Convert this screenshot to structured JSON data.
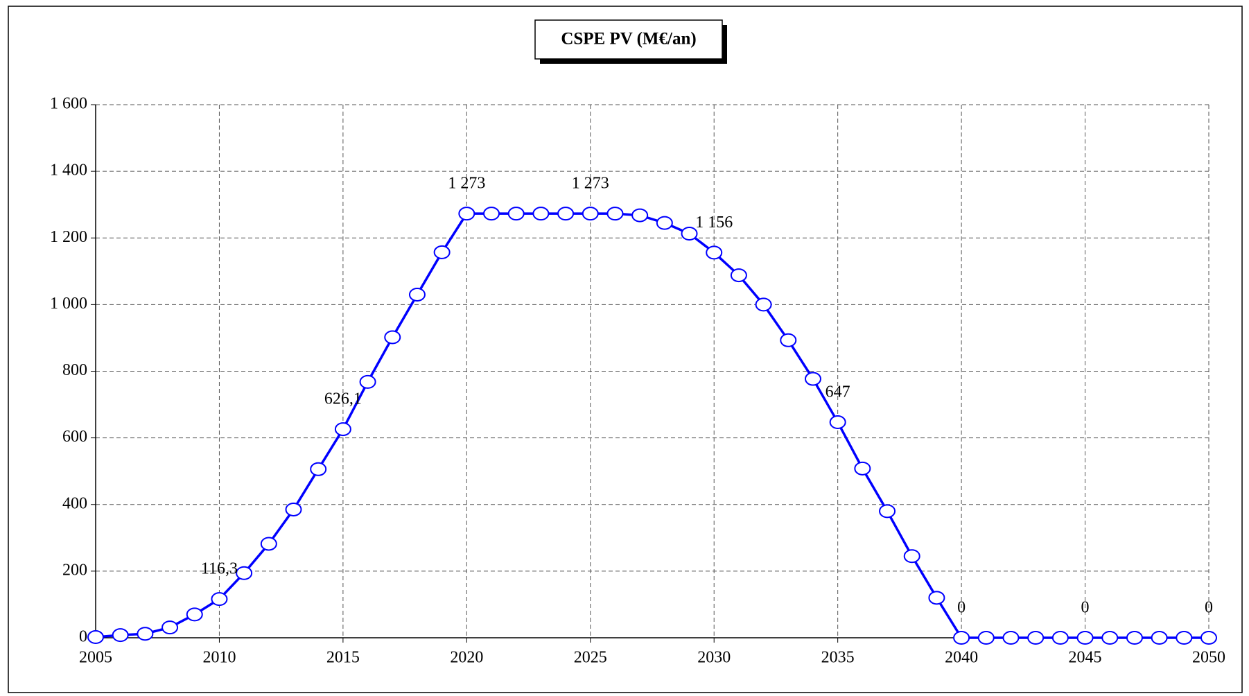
{
  "chart_data": {
    "type": "line",
    "title": "CSPE PV (M€/an)",
    "x": [
      2005,
      2006,
      2007,
      2008,
      2009,
      2010,
      2011,
      2012,
      2013,
      2014,
      2015,
      2016,
      2017,
      2018,
      2019,
      2020,
      2021,
      2022,
      2023,
      2024,
      2025,
      2026,
      2027,
      2028,
      2029,
      2030,
      2031,
      2032,
      2033,
      2034,
      2035,
      2036,
      2037,
      2038,
      2039,
      2040,
      2041,
      2042,
      2043,
      2044,
      2045,
      2046,
      2047,
      2048,
      2049,
      2050
    ],
    "series": [
      {
        "name": "CSPE PV",
        "color": "#0000ff",
        "values": [
          2,
          8,
          12,
          31,
          70,
          116.3,
          194,
          282,
          385,
          506,
          626.1,
          768,
          902,
          1030,
          1157,
          1273,
          1273,
          1273,
          1273,
          1273,
          1273,
          1273,
          1268,
          1245,
          1213,
          1156,
          1088,
          1000,
          893,
          777,
          647,
          508,
          380,
          245,
          120,
          0,
          0,
          0,
          0,
          0,
          0,
          0,
          0,
          0,
          0,
          0
        ],
        "value_labels": [
          null,
          null,
          null,
          null,
          null,
          "116,3",
          null,
          null,
          null,
          null,
          "626,1",
          null,
          null,
          null,
          null,
          "1 273",
          null,
          null,
          null,
          null,
          "1 273",
          null,
          null,
          null,
          null,
          "1 156",
          null,
          null,
          null,
          null,
          "647",
          null,
          null,
          null,
          null,
          "0",
          null,
          null,
          null,
          null,
          "0",
          null,
          null,
          null,
          null,
          "0"
        ]
      }
    ],
    "xlim": [
      2005,
      2050
    ],
    "xticks": [
      2005,
      2010,
      2015,
      2020,
      2025,
      2030,
      2035,
      2040,
      2045,
      2050
    ],
    "ylim": [
      0,
      1600
    ],
    "yticks": [
      0,
      200,
      400,
      600,
      800,
      {
        "value": 1000,
        "label": "1 000"
      },
      {
        "value": 1200,
        "label": "1 200"
      },
      {
        "value": 1400,
        "label": "1 400"
      },
      {
        "value": 1600,
        "label": "1 600"
      }
    ],
    "grid": true
  }
}
